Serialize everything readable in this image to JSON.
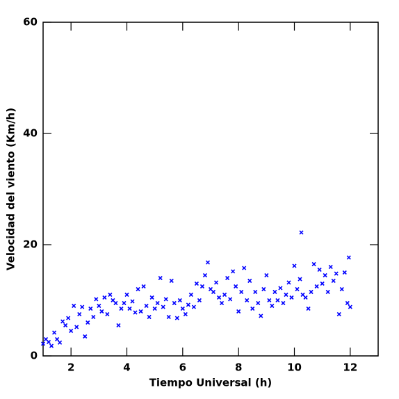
{
  "chart_data": {
    "type": "scatter",
    "marker": "x",
    "color": "#0000ff",
    "xlabel": "Tiempo Universal (h)",
    "ylabel": "Velocidad del viento (Km/h)",
    "xlim": [
      1,
      13
    ],
    "ylim": [
      0,
      60
    ],
    "xticks": [
      2,
      4,
      6,
      8,
      10,
      12
    ],
    "yticks": [
      0,
      20,
      40,
      60
    ],
    "x": [
      1.0,
      1.1,
      1.2,
      1.3,
      1.4,
      1.5,
      1.6,
      1.7,
      1.8,
      1.9,
      2.0,
      2.1,
      2.2,
      2.3,
      2.4,
      2.5,
      2.6,
      2.7,
      2.8,
      2.9,
      3.0,
      3.1,
      3.2,
      3.3,
      3.4,
      3.5,
      3.6,
      3.7,
      3.8,
      3.9,
      4.0,
      4.1,
      4.2,
      4.3,
      4.4,
      4.5,
      4.6,
      4.7,
      4.8,
      4.9,
      5.0,
      5.1,
      5.2,
      5.3,
      5.4,
      5.5,
      5.6,
      5.7,
      5.8,
      5.9,
      6.0,
      6.1,
      6.2,
      6.3,
      6.4,
      6.5,
      6.6,
      6.7,
      6.8,
      6.9,
      7.0,
      7.1,
      7.2,
      7.3,
      7.4,
      7.5,
      7.6,
      7.7,
      7.8,
      7.9,
      8.0,
      8.1,
      8.2,
      8.3,
      8.4,
      8.5,
      8.6,
      8.7,
      8.8,
      8.9,
      9.0,
      9.1,
      9.2,
      9.3,
      9.4,
      9.5,
      9.6,
      9.7,
      9.8,
      9.9,
      10.0,
      10.1,
      10.2,
      10.25,
      10.3,
      10.4,
      10.5,
      10.6,
      10.7,
      10.8,
      10.9,
      11.0,
      11.1,
      11.2,
      11.3,
      11.4,
      11.5,
      11.6,
      11.7,
      11.8,
      11.9,
      11.95,
      12.0
    ],
    "values": [
      2.2,
      3.0,
      2.5,
      1.8,
      4.2,
      3.0,
      2.4,
      6.2,
      5.5,
      6.8,
      4.5,
      9.0,
      5.2,
      7.5,
      8.8,
      3.5,
      6.0,
      8.5,
      7.0,
      10.2,
      9.0,
      8.0,
      10.5,
      7.5,
      11.0,
      10.0,
      9.5,
      5.5,
      8.5,
      9.5,
      11.0,
      8.5,
      9.8,
      7.8,
      12.0,
      8.0,
      12.5,
      9.0,
      7.0,
      10.5,
      8.5,
      9.5,
      14.0,
      8.8,
      10.2,
      7.0,
      13.5,
      9.5,
      6.8,
      10.0,
      8.5,
      7.5,
      9.2,
      11.0,
      8.8,
      13.0,
      10.0,
      12.5,
      14.5,
      16.8,
      12.0,
      11.5,
      13.2,
      10.5,
      9.5,
      11.0,
      14.0,
      10.2,
      15.2,
      12.5,
      8.0,
      11.5,
      15.8,
      10.0,
      13.5,
      8.5,
      11.5,
      9.5,
      7.2,
      12.0,
      14.5,
      10.0,
      9.0,
      11.5,
      10.0,
      12.2,
      9.5,
      11.0,
      13.2,
      10.5,
      16.2,
      12.0,
      13.8,
      22.2,
      11.0,
      10.5,
      8.5,
      11.5,
      16.5,
      12.5,
      15.5,
      13.0,
      14.5,
      11.5,
      16.0,
      13.5,
      14.8,
      7.5,
      12.0,
      15.0,
      9.5,
      17.7,
      8.8
    ]
  }
}
